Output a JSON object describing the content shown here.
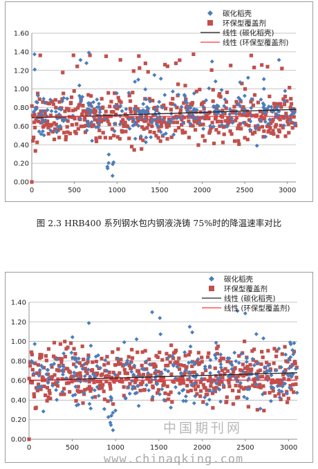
{
  "caption": "图 2.3  HRB400 系列钢水包内钢液浇铸 75%时的降温速率对比",
  "watermark": {
    "text_cn": "中国期刊网",
    "url": "www.chinaqking.com"
  },
  "colors": {
    "blue": "#4a7ebb",
    "red": "#c0504d",
    "grid": "#b3b3b3",
    "trend_blue": "#1f1f1f",
    "trend_red": "#ff3030"
  },
  "chart_data": [
    {
      "type": "scatter",
      "title": "",
      "xlabel": "",
      "ylabel": "",
      "xlim": [
        0,
        3100
      ],
      "ylim": [
        0,
        1.6
      ],
      "xticks": [
        0,
        500,
        1000,
        1500,
        2000,
        2500,
        3000
      ],
      "yticks": [
        "0.00",
        "0.20",
        "0.40",
        "0.60",
        "0.80",
        "1.00",
        "1.20",
        "1.40",
        "1.60"
      ],
      "grid": "horizontal",
      "legend_position": "top-right",
      "series": [
        {
          "name": "碳化稻壳",
          "marker": "diamond",
          "color": "#4a7ebb",
          "approx_points": 3100,
          "range": [
            0.0,
            1.42
          ],
          "typical_band": [
            0.45,
            1.0
          ]
        },
        {
          "name": "环保型覆盖剂",
          "marker": "square",
          "color": "#c0504d",
          "approx_points": 3100,
          "range": [
            0.0,
            1.38
          ],
          "typical_band": [
            0.4,
            1.0
          ]
        },
        {
          "name": "线性 (碳化稻壳)",
          "type": "trendline",
          "color": "#1f1f1f",
          "x": [
            0,
            3100
          ],
          "y": [
            0.69,
            0.78
          ]
        },
        {
          "name": "线性 (环保型覆盖剂)",
          "type": "trendline",
          "color": "#ff3030",
          "x": [
            0,
            3100
          ],
          "y": [
            0.705,
            0.705
          ]
        }
      ]
    },
    {
      "type": "scatter",
      "title": "",
      "xlabel": "",
      "ylabel": "",
      "xlim": [
        0,
        3100
      ],
      "ylim": [
        0,
        1.4
      ],
      "xticks": [
        0,
        500,
        1000,
        1500,
        2000,
        2500,
        3000
      ],
      "yticks": [
        "0.00",
        "0.20",
        "0.40",
        "0.60",
        "0.80",
        "1.00",
        "1.20",
        "1.40"
      ],
      "grid": "horizontal",
      "legend_position": "top-right",
      "series": [
        {
          "name": "碳化稻壳",
          "marker": "diamond",
          "color": "#4a7ebb",
          "approx_points": 3100,
          "range": [
            0.0,
            1.32
          ],
          "typical_band": [
            0.3,
            1.0
          ]
        },
        {
          "name": "环保型覆盖剂",
          "marker": "square",
          "color": "#c0504d",
          "approx_points": 3100,
          "range": [
            0.0,
            1.0
          ],
          "typical_band": [
            0.35,
            0.95
          ]
        },
        {
          "name": "线性 (碳化稻壳)",
          "type": "trendline",
          "color": "#1f1f1f",
          "x": [
            0,
            3100
          ],
          "y": [
            0.6,
            0.68
          ]
        },
        {
          "name": "线性 (环保型覆盖剂)",
          "type": "trendline",
          "color": "#ff3030",
          "x": [
            0,
            3100
          ],
          "y": [
            0.605,
            0.605
          ]
        }
      ]
    }
  ]
}
